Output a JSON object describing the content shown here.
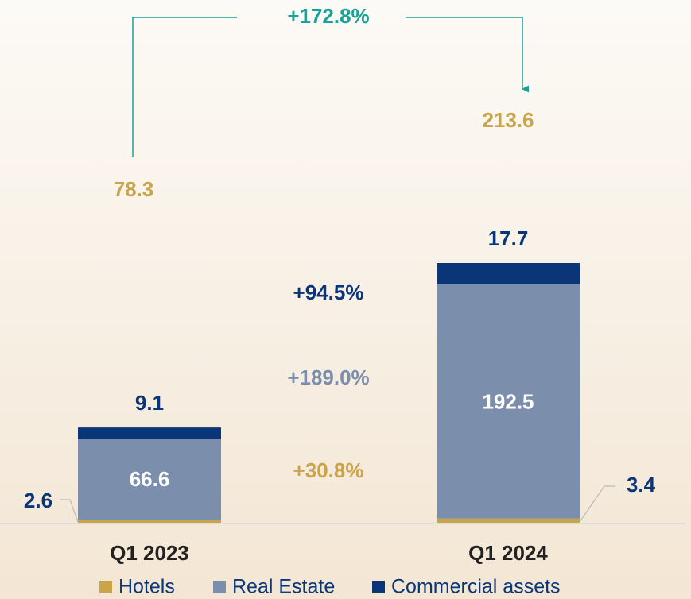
{
  "chart_data": {
    "type": "stacked_bar",
    "categories": [
      "Q1 2023",
      "Q1 2024"
    ],
    "series": [
      {
        "name": "Hotels",
        "color": "#c9a449",
        "values": [
          2.6,
          3.4
        ]
      },
      {
        "name": "Real Estate",
        "color": "#7b8fad",
        "values": [
          66.6,
          192.5
        ]
      },
      {
        "name": "Commercial assets",
        "color": "#0a3577",
        "values": [
          9.1,
          17.7
        ]
      }
    ],
    "totals": [
      78.3,
      213.6
    ],
    "totals_color": "#c9a449",
    "annotations": [
      {
        "text": "+172.8%",
        "color": "#17a398"
      },
      {
        "text": "+94.5%",
        "color": "#0a3577"
      },
      {
        "text": "+189.0%",
        "color": "#7b8fad"
      },
      {
        "text": "+30.8%",
        "color": "#c9a449"
      }
    ]
  }
}
